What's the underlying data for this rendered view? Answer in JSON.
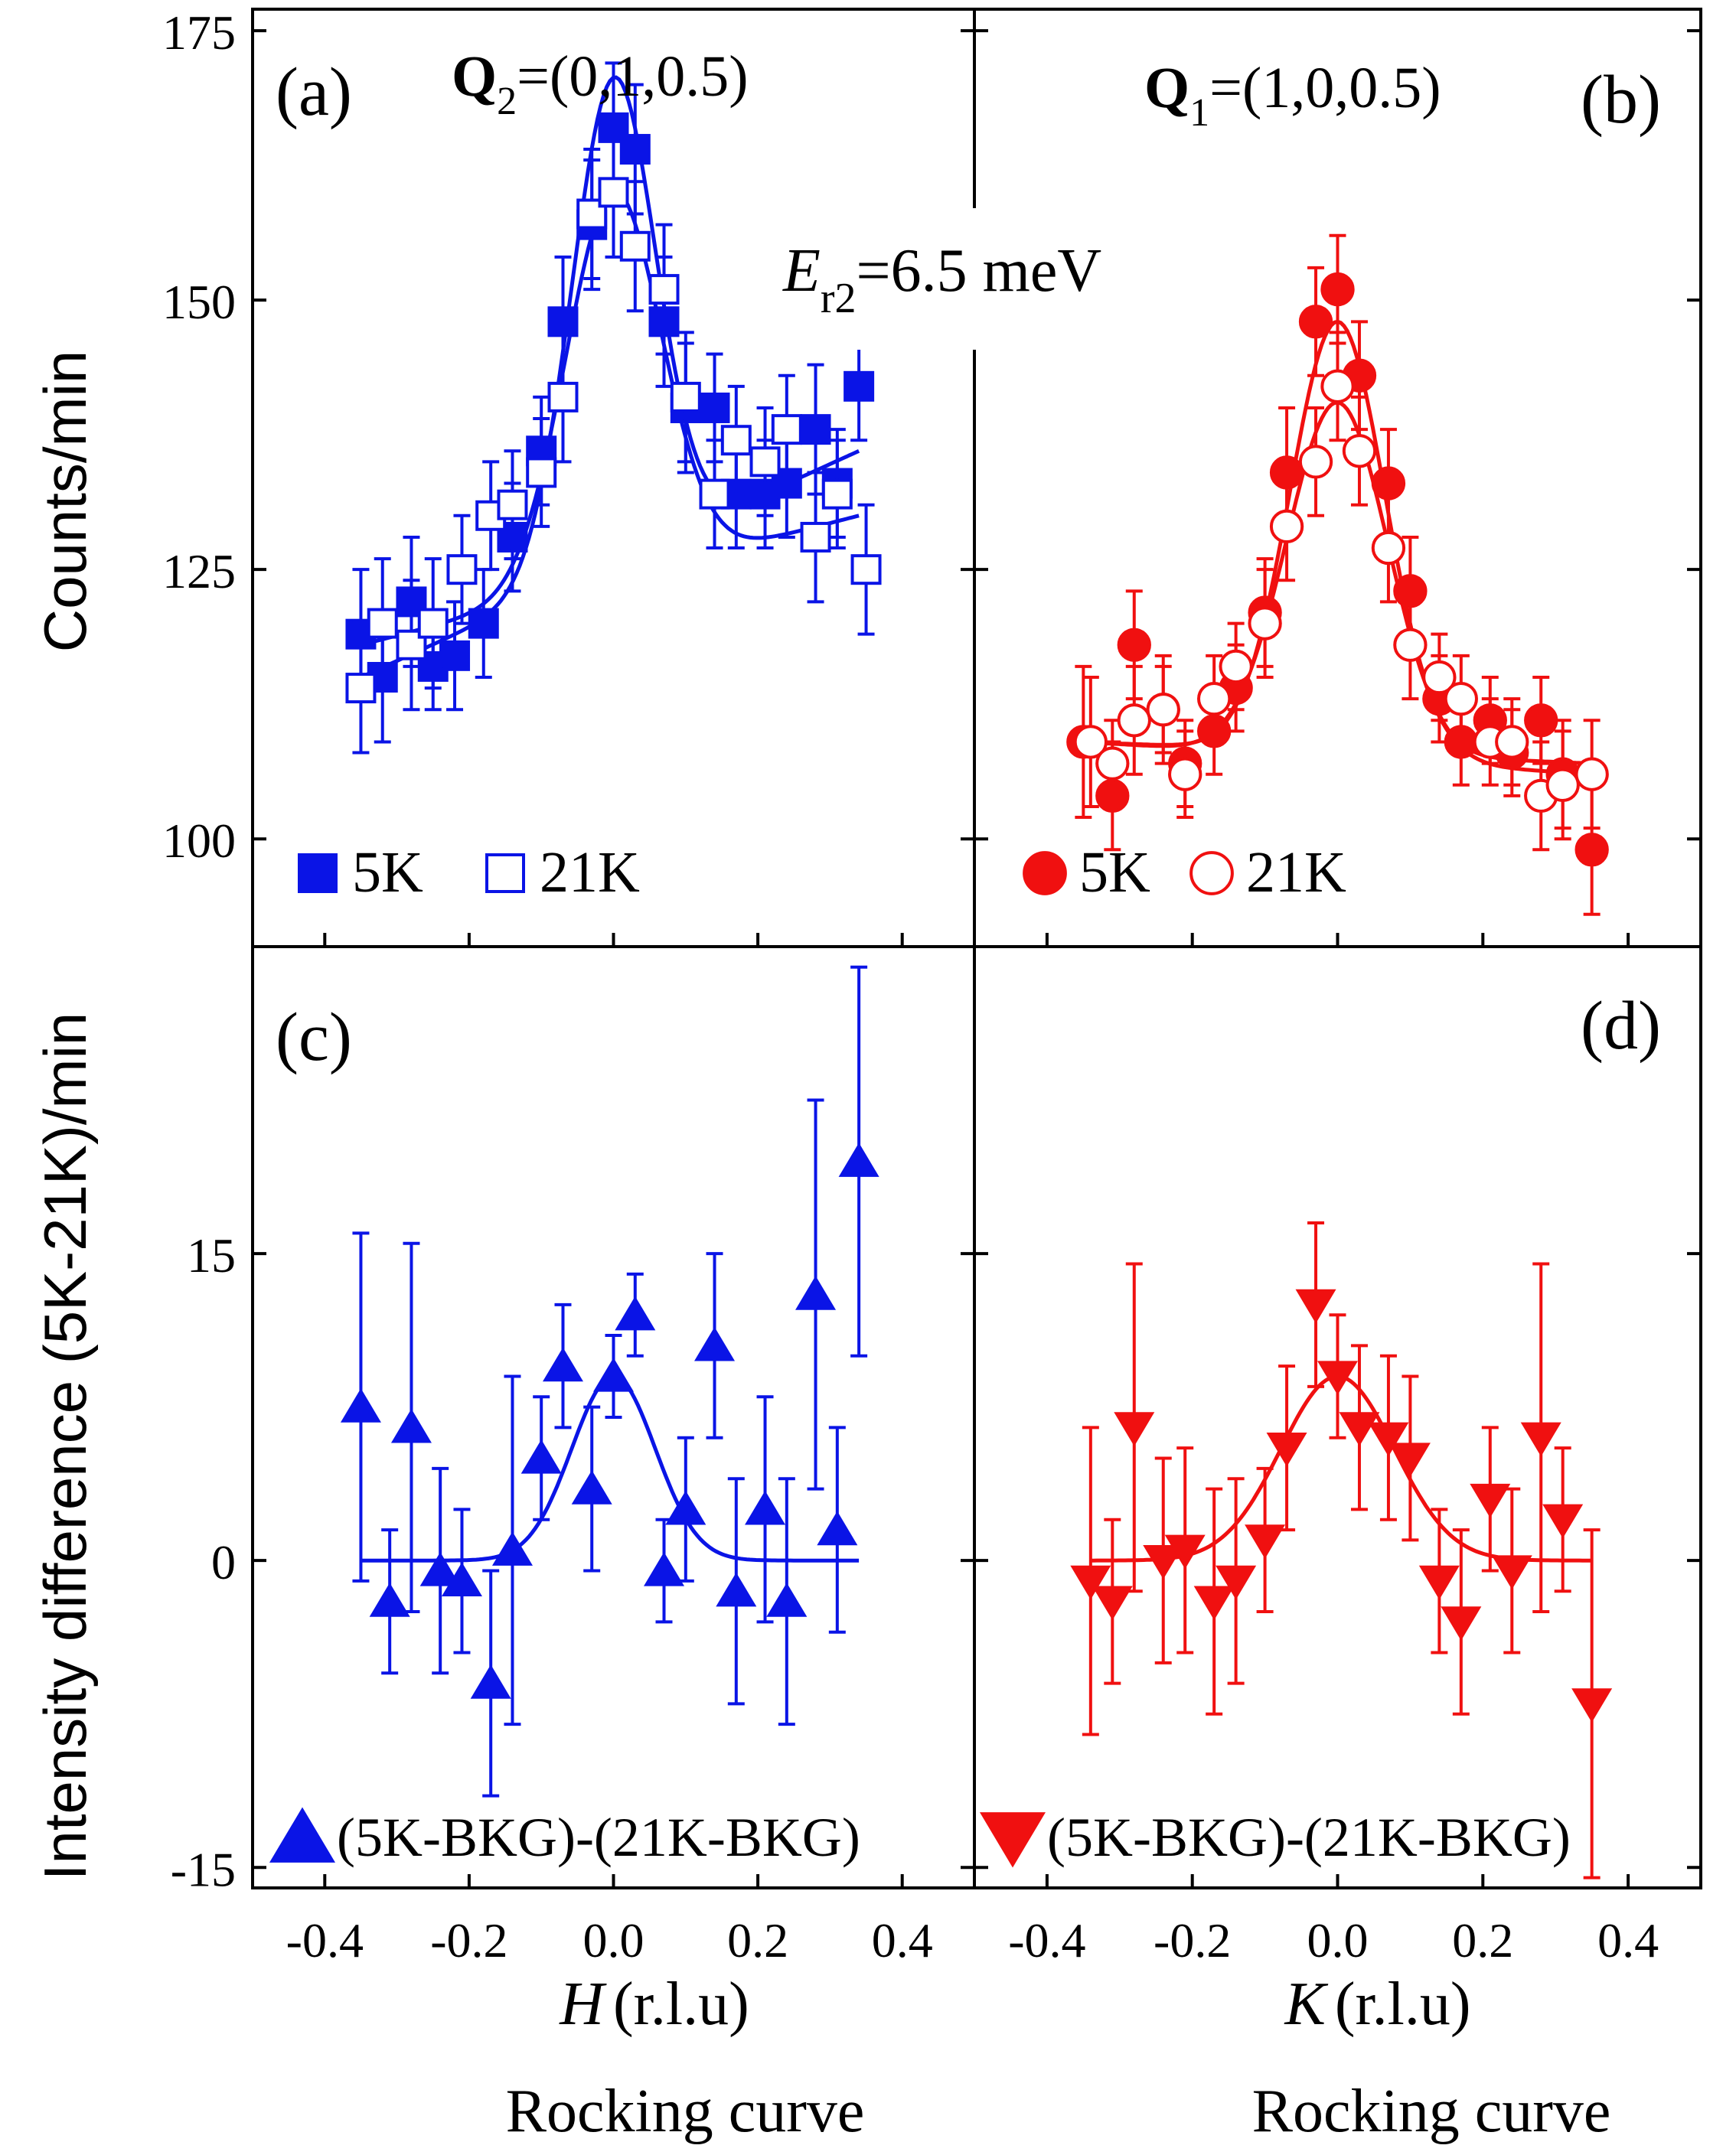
{
  "figure": {
    "y_label_top": "Counts/min",
    "y_label_bottom": "Intensity difference (5K-21K)/min",
    "x_label_left_var": "H",
    "x_label_right_var": "K",
    "x_label_unit": "(r.l.u)",
    "subtitle_left": "Rocking curve",
    "subtitle_right": "Rocking curve",
    "energy_var": "E",
    "energy_sub": "r2",
    "energy_value": "=6.5 meV"
  },
  "colors": {
    "blue": "#0a14e6",
    "red": "#f01010",
    "black": "#000000"
  },
  "chart_data": [
    {
      "panel": "a",
      "type": "scatter",
      "panel_label": "(a)",
      "q_bold": "Q",
      "q_sub": "2",
      "q_text": "=(0,1,0.5)",
      "color": "#0a14e6",
      "xlim": [
        -0.5,
        0.5
      ],
      "ylim": [
        90,
        177
      ],
      "yticks": [
        100,
        125,
        150,
        175
      ],
      "legend": [
        {
          "label": "5K",
          "marker": "square-filled"
        },
        {
          "label": "21K",
          "marker": "square-open"
        }
      ],
      "series": [
        {
          "name": "5K",
          "marker": "square-filled",
          "x": [
            -0.35,
            -0.32,
            -0.28,
            -0.25,
            -0.22,
            -0.18,
            -0.14,
            -0.1,
            -0.07,
            -0.03,
            0.0,
            0.03,
            0.07,
            0.1,
            0.14,
            0.17,
            0.21,
            0.24,
            0.28,
            0.31,
            0.34
          ],
          "y": [
            119,
            115,
            122,
            116,
            117,
            120,
            128,
            136,
            148,
            157,
            166,
            164,
            148,
            140,
            140,
            132,
            132,
            133,
            138,
            133,
            142
          ],
          "err": [
            6,
            6,
            6,
            4,
            5,
            5,
            5,
            5,
            6,
            6,
            6,
            6,
            6,
            6,
            5,
            5,
            5,
            5,
            6,
            5,
            5
          ]
        },
        {
          "name": "21K",
          "marker": "square-open",
          "x": [
            -0.35,
            -0.32,
            -0.28,
            -0.25,
            -0.21,
            -0.17,
            -0.14,
            -0.1,
            -0.07,
            -0.03,
            0.0,
            0.03,
            0.07,
            0.1,
            0.14,
            0.17,
            0.21,
            0.24,
            0.28,
            0.31,
            0.35
          ],
          "y": [
            114,
            120,
            118,
            120,
            125,
            130,
            131,
            134,
            141,
            158,
            160,
            155,
            151,
            141,
            132,
            137,
            135,
            138,
            128,
            132,
            125
          ],
          "err": [
            6,
            6,
            6,
            6,
            5,
            5,
            5,
            5,
            6,
            6,
            6,
            6,
            6,
            6,
            5,
            5,
            5,
            5,
            6,
            5,
            6
          ]
        }
      ],
      "fits": [
        {
          "name": "5K",
          "baseline_start": 115,
          "baseline_end": 136,
          "amplitude": 45,
          "center": 0.0,
          "sigma": 0.058,
          "x_range": [
            -0.35,
            0.34
          ]
        },
        {
          "name": "21K",
          "baseline_start": 118,
          "baseline_end": 130,
          "amplitude": 36,
          "center": 0.0,
          "sigma": 0.066,
          "x_range": [
            -0.35,
            0.34
          ]
        }
      ]
    },
    {
      "panel": "b",
      "type": "scatter",
      "panel_label": "(b)",
      "q_bold": "Q",
      "q_sub": "1",
      "q_text": "=(1,0,0.5)",
      "color": "#f01010",
      "xlim": [
        -0.5,
        0.5
      ],
      "ylim": [
        90,
        177
      ],
      "yticks": [
        100,
        125,
        150,
        175
      ],
      "legend": [
        {
          "label": "5K",
          "marker": "circle-filled"
        },
        {
          "label": "21K",
          "marker": "circle-open"
        }
      ],
      "series": [
        {
          "name": "5K",
          "marker": "circle-filled",
          "x": [
            -0.35,
            -0.31,
            -0.28,
            -0.24,
            -0.21,
            -0.17,
            -0.14,
            -0.1,
            -0.07,
            -0.03,
            0.0,
            0.03,
            0.07,
            0.1,
            0.14,
            0.17,
            0.21,
            0.24,
            0.28,
            0.31,
            0.35
          ],
          "y": [
            109,
            104,
            118,
            112,
            107,
            110,
            114,
            121,
            134,
            148,
            151,
            143,
            133,
            123,
            113,
            109,
            111,
            108,
            111,
            106,
            99
          ],
          "err": [
            7,
            5,
            5,
            5,
            4,
            4,
            4,
            5,
            6,
            5,
            5,
            5,
            5,
            5,
            4,
            4,
            4,
            4,
            4,
            5,
            6
          ]
        },
        {
          "name": "21K",
          "marker": "circle-open",
          "x": [
            -0.34,
            -0.31,
            -0.28,
            -0.24,
            -0.21,
            -0.17,
            -0.14,
            -0.1,
            -0.07,
            -0.03,
            0.0,
            0.03,
            0.07,
            0.1,
            0.14,
            0.17,
            0.21,
            0.24,
            0.28,
            0.31,
            0.35
          ],
          "y": [
            109,
            107,
            111,
            112,
            106,
            113,
            116,
            120,
            129,
            135,
            142,
            136,
            127,
            118,
            115,
            113,
            109,
            109,
            104,
            105,
            106
          ],
          "err": [
            6,
            4,
            5,
            4,
            4,
            4,
            4,
            5,
            5,
            5,
            5,
            5,
            5,
            5,
            4,
            4,
            4,
            4,
            5,
            5,
            5
          ]
        }
      ],
      "fits": [
        {
          "name": "5K",
          "baseline_start": 109,
          "baseline_end": 107,
          "amplitude": 40,
          "center": 0.0,
          "sigma": 0.065,
          "x_range": [
            -0.35,
            0.35
          ]
        },
        {
          "name": "21K",
          "baseline_start": 109,
          "baseline_end": 106,
          "amplitude": 33,
          "center": 0.0,
          "sigma": 0.07,
          "x_range": [
            -0.35,
            0.35
          ]
        }
      ]
    },
    {
      "panel": "c",
      "type": "scatter",
      "panel_label": "(c)",
      "color": "#0a14e6",
      "xlim": [
        -0.5,
        0.5
      ],
      "ylim": [
        -16,
        30
      ],
      "yticks": [
        -15,
        0,
        15
      ],
      "xticks": [
        -0.4,
        -0.2,
        0.0,
        0.2,
        0.4
      ],
      "xtick_labels": [
        "-0.4",
        "-0.2",
        "0.0",
        "0.2",
        "0.4"
      ],
      "legend": [
        {
          "label": "(5K-BKG)-(21K-BKG)",
          "marker": "triangle-up"
        }
      ],
      "series": [
        {
          "name": "(5K-BKG)-(21K-BKG)",
          "marker": "triangle-up",
          "x": [
            -0.35,
            -0.31,
            -0.28,
            -0.24,
            -0.21,
            -0.17,
            -0.14,
            -0.1,
            -0.07,
            -0.03,
            0.0,
            0.03,
            0.07,
            0.1,
            0.14,
            0.17,
            0.21,
            0.24,
            0.28,
            0.31,
            0.34
          ],
          "y": [
            7.5,
            -2.0,
            6.5,
            -0.5,
            -1.0,
            -6.0,
            0.5,
            5.0,
            9.5,
            3.5,
            9.0,
            12.0,
            -0.5,
            2.5,
            10.5,
            -1.5,
            2.5,
            -2.0,
            13.0,
            1.5,
            19.5
          ],
          "err": [
            8.5,
            3.5,
            9.0,
            5.0,
            3.5,
            5.5,
            8.5,
            3.0,
            3.0,
            4.0,
            2.0,
            2.0,
            2.5,
            3.5,
            4.5,
            5.5,
            5.5,
            6.0,
            9.5,
            5.0,
            9.5
          ]
        }
      ],
      "fits": [
        {
          "name": "fit",
          "baseline_start": 0,
          "baseline_end": 0,
          "amplitude": 9,
          "center": 0.0,
          "sigma": 0.058,
          "x_range": [
            -0.35,
            0.34
          ]
        }
      ]
    },
    {
      "panel": "d",
      "type": "scatter",
      "panel_label": "(d)",
      "color": "#f01010",
      "xlim": [
        -0.5,
        0.5
      ],
      "ylim": [
        -16,
        30
      ],
      "yticks": [
        -15,
        0,
        15
      ],
      "xticks": [
        -0.4,
        -0.2,
        0.0,
        0.2,
        0.4
      ],
      "xtick_labels": [
        "-0.4",
        "-0.2",
        "0.0",
        "0.2",
        "0.4"
      ],
      "legend": [
        {
          "label": "(5K-BKG)-(21K-BKG)",
          "marker": "triangle-down"
        }
      ],
      "series": [
        {
          "name": "(5K-BKG)-(21K-BKG)",
          "marker": "triangle-down",
          "x": [
            -0.34,
            -0.31,
            -0.28,
            -0.24,
            -0.21,
            -0.17,
            -0.14,
            -0.1,
            -0.07,
            -0.03,
            0.0,
            0.03,
            0.07,
            0.1,
            0.14,
            0.17,
            0.21,
            0.24,
            0.28,
            0.31,
            0.35
          ],
          "y": [
            -1.0,
            -2.0,
            6.5,
            0.0,
            0.5,
            -2.0,
            -1.0,
            1.0,
            5.5,
            12.5,
            9.0,
            6.5,
            6.0,
            5.0,
            -1.0,
            -3.0,
            3.0,
            -0.5,
            6.0,
            2.0,
            -7.0
          ],
          "err": [
            7.5,
            4.0,
            8.0,
            5.0,
            5.0,
            5.5,
            5.0,
            3.5,
            4.0,
            4.0,
            3.0,
            4.0,
            4.0,
            4.0,
            3.5,
            4.5,
            3.5,
            4.0,
            8.5,
            3.5,
            8.5
          ]
        }
      ],
      "fits": [
        {
          "name": "fit",
          "baseline_start": 0,
          "baseline_end": 0,
          "amplitude": 9,
          "center": 0.0,
          "sigma": 0.078,
          "x_range": [
            -0.34,
            0.35
          ]
        }
      ]
    }
  ]
}
